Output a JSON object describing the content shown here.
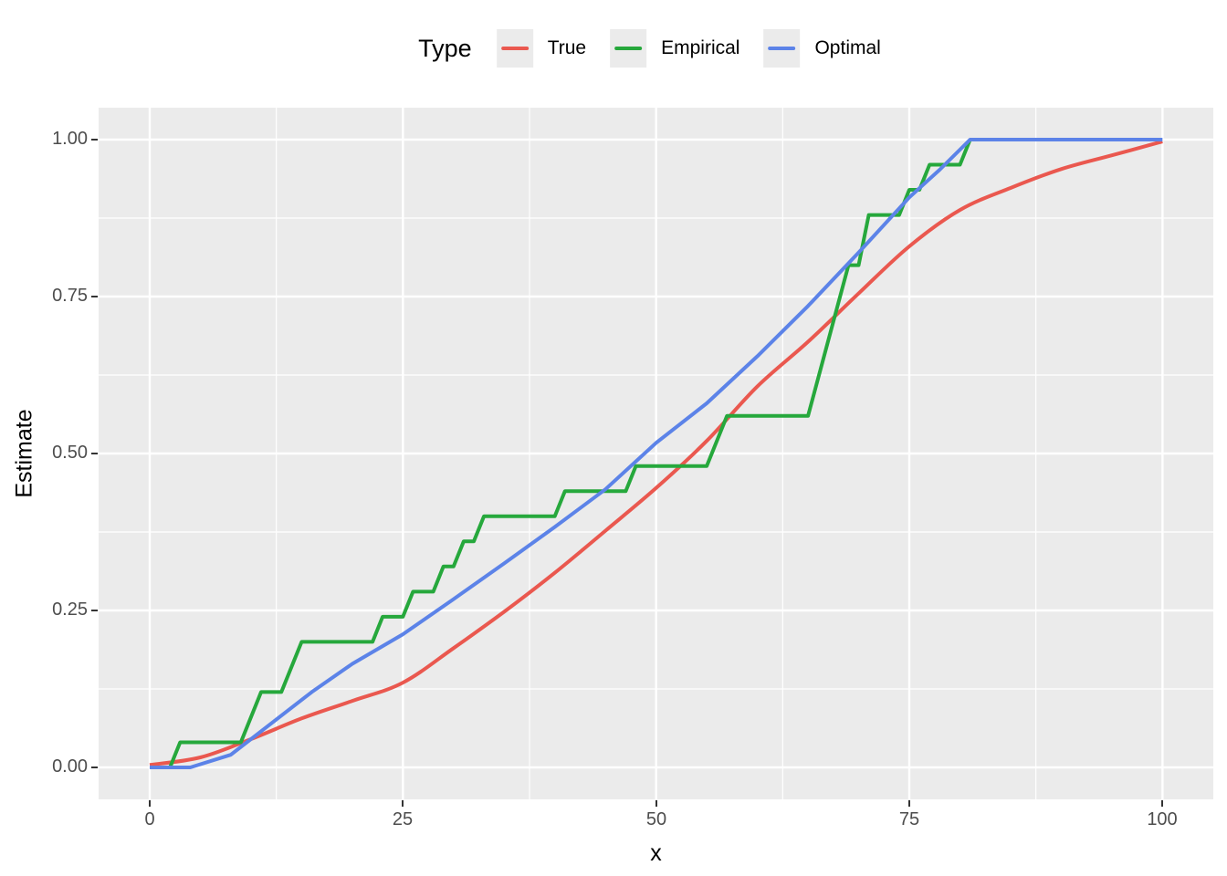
{
  "legend": {
    "title": "Type",
    "entries": [
      {
        "label": "True"
      },
      {
        "label": "Empirical"
      },
      {
        "label": "Optimal"
      }
    ]
  },
  "axes": {
    "x": {
      "title": "x",
      "ticks": [
        "0",
        "25",
        "50",
        "75",
        "100"
      ]
    },
    "y": {
      "title": "Estimate",
      "ticks": [
        "0.00",
        "0.25",
        "0.50",
        "0.75",
        "1.00"
      ]
    }
  },
  "style": {
    "panel_bg": "#EBEBEB",
    "grid_color": "#FFFFFF",
    "legend_key_bg": "#EBEBEB",
    "tick_color": "#333333",
    "tick_label_color": "#4D4D4D"
  },
  "chart_data": {
    "type": "line",
    "title": "",
    "xlabel": "x",
    "ylabel": "Estimate",
    "xlim": [
      -5,
      105
    ],
    "ylim": [
      -0.05,
      1.05
    ],
    "x_ticks": [
      0,
      25,
      50,
      75,
      100
    ],
    "y_ticks": [
      0,
      0.25,
      0.5,
      0.75,
      1.0
    ],
    "x_minor": [
      12.5,
      37.5,
      62.5,
      87.5
    ],
    "y_minor": [
      0.125,
      0.375,
      0.625,
      0.875
    ],
    "grid": "white major and minor gridlines on grey panel",
    "legend_title": "Type",
    "legend_position": "top",
    "series": [
      {
        "name": "True",
        "color": "#EA584F",
        "style": "smooth",
        "points": [
          [
            0,
            0.004
          ],
          [
            5,
            0.016
          ],
          [
            10,
            0.045
          ],
          [
            15,
            0.078
          ],
          [
            20,
            0.106
          ],
          [
            25,
            0.135
          ],
          [
            30,
            0.19
          ],
          [
            35,
            0.248
          ],
          [
            40,
            0.31
          ],
          [
            45,
            0.377
          ],
          [
            50,
            0.445
          ],
          [
            55,
            0.52
          ],
          [
            60,
            0.607
          ],
          [
            65,
            0.678
          ],
          [
            70,
            0.755
          ],
          [
            75,
            0.83
          ],
          [
            80,
            0.888
          ],
          [
            85,
            0.923
          ],
          [
            90,
            0.953
          ],
          [
            95,
            0.975
          ],
          [
            100,
            0.997
          ]
        ]
      },
      {
        "name": "Empirical",
        "color": "#26A83C",
        "style": "line",
        "points": [
          [
            0,
            0
          ],
          [
            2,
            0
          ],
          [
            3,
            0.04
          ],
          [
            9,
            0.04
          ],
          [
            11,
            0.12
          ],
          [
            13,
            0.12
          ],
          [
            15,
            0.2
          ],
          [
            22,
            0.2
          ],
          [
            23,
            0.24
          ],
          [
            25,
            0.24
          ],
          [
            26,
            0.28
          ],
          [
            28,
            0.28
          ],
          [
            29,
            0.32
          ],
          [
            30,
            0.32
          ],
          [
            31,
            0.36
          ],
          [
            32,
            0.36
          ],
          [
            33,
            0.4
          ],
          [
            40,
            0.4
          ],
          [
            41,
            0.44
          ],
          [
            47,
            0.44
          ],
          [
            48,
            0.48
          ],
          [
            55,
            0.48
          ],
          [
            57,
            0.56
          ],
          [
            65,
            0.56
          ],
          [
            69,
            0.8
          ],
          [
            70,
            0.8
          ],
          [
            71,
            0.88
          ],
          [
            74,
            0.88
          ],
          [
            75,
            0.92
          ],
          [
            76,
            0.92
          ],
          [
            77,
            0.96
          ],
          [
            80,
            0.96
          ],
          [
            81,
            1.0
          ]
        ]
      },
      {
        "name": "Optimal",
        "color": "#5C83E8",
        "style": "line",
        "points": [
          [
            0,
            0
          ],
          [
            4,
            0
          ],
          [
            8,
            0.02
          ],
          [
            12,
            0.07
          ],
          [
            16,
            0.12
          ],
          [
            20,
            0.165
          ],
          [
            25,
            0.212
          ],
          [
            30,
            0.268
          ],
          [
            35,
            0.325
          ],
          [
            40,
            0.383
          ],
          [
            45,
            0.443
          ],
          [
            50,
            0.517
          ],
          [
            55,
            0.58
          ],
          [
            60,
            0.655
          ],
          [
            65,
            0.735
          ],
          [
            70,
            0.82
          ],
          [
            75,
            0.908
          ],
          [
            78,
            0.952
          ],
          [
            81,
            1.0
          ],
          [
            100,
            1.0
          ]
        ]
      }
    ]
  }
}
